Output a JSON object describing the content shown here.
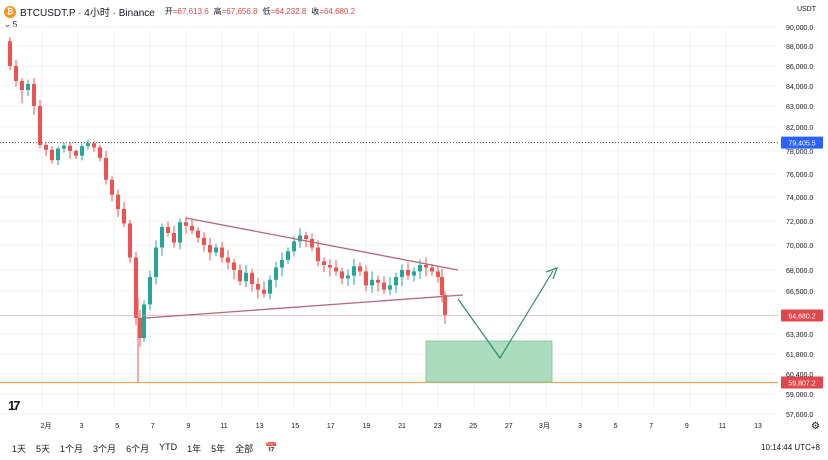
{
  "header": {
    "symbol": "BTCUSDT.P · 4小时 · Binance",
    "logo_glyph": "₿",
    "ohlc": [
      {
        "k": "开",
        "v": "=67,613.6"
      },
      {
        "k": "高",
        "v": "=67,656.8"
      },
      {
        "k": "低",
        "v": "=64,232.8"
      },
      {
        "k": "收",
        "v": "=64,680.2"
      }
    ],
    "indicator": "5",
    "currency": "USDT"
  },
  "price_axis": {
    "ticks": [
      "90,000.0",
      "88,000.0",
      "86,000.0",
      "84,000.0",
      "83,000.0",
      "82,000.0",
      "78,000.0",
      "76,000.0",
      "74,000.0",
      "72,000.0",
      "70,000.0",
      "68,000.0",
      "66,500.0",
      "63,300.0",
      "61,800.0",
      "60,400.0",
      "59,000.0",
      "57,600.0"
    ],
    "badges": [
      {
        "label": "79,405.5",
        "color": "#2962ff"
      },
      {
        "label": "64,680.2",
        "color": "#e0474c"
      },
      {
        "label": "59,807.2",
        "color": "#e0474c"
      }
    ]
  },
  "time_axis": {
    "labels": [
      "2月",
      "3",
      "5",
      "7",
      "9",
      "11",
      "13",
      "15",
      "17",
      "19",
      "21",
      "23",
      "25",
      "27",
      "3月",
      "3",
      "5",
      "7",
      "9",
      "11",
      "13"
    ]
  },
  "chart_data": {
    "type": "candlestick",
    "title": "BTCUSDT.P · 4小时 · Binance",
    "y_unit": "USDT",
    "levels": {
      "dotted_resistance": 79405.5,
      "current_price": 64680.2,
      "support_line": 59807.2
    },
    "patterns": [
      "descending-triangle",
      "projection-down-then-up",
      "target-zone"
    ],
    "grid": true
  },
  "bottom": {
    "timeframes": [
      "1天",
      "5天",
      "1个月",
      "3个月",
      "6个月",
      "YTD",
      "1年",
      "5年",
      "全部"
    ],
    "clock": "10:14:44 UTC+8",
    "tv_logo": "17"
  },
  "colors": {
    "up": "#26a69a",
    "down": "#ef5350",
    "triangle": "#b36a78",
    "projection": "#2e8b6e",
    "zone_fill": "#a3d9b8",
    "support": "#f0a35b",
    "current": "#e0474c",
    "dotted": "#555555"
  }
}
